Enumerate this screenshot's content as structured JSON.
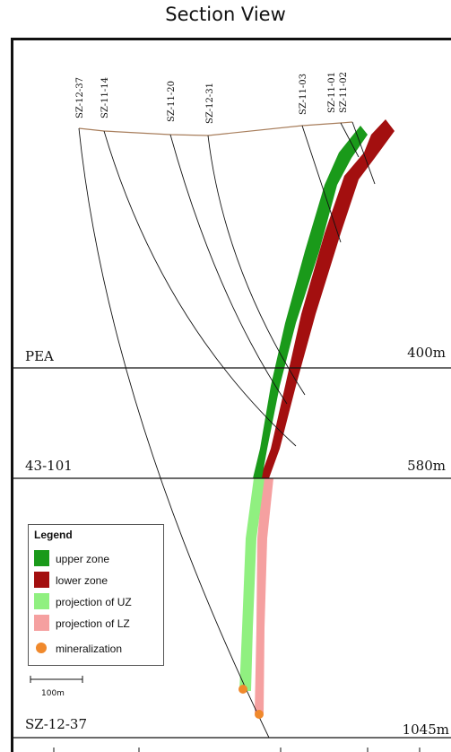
{
  "title": "Section View",
  "colors": {
    "upper_zone": "#1a9a1a",
    "lower_zone": "#a30f0f",
    "projection_uz": "#90f080",
    "projection_lz": "#f5a0a0",
    "mineralization": "#f0892c",
    "collar_line": "#a87e5c"
  },
  "levels": [
    {
      "left_label": "PEA",
      "right_label": "400m"
    },
    {
      "left_label": "43-101",
      "right_label": "580m"
    },
    {
      "left_label": "SZ-12-37",
      "right_label": "1045m"
    }
  ],
  "drill_holes": [
    "SZ-12-37",
    "SZ-11-14",
    "SZ-11-20",
    "SZ-12-31",
    "SZ-11-03",
    "SZ-11-01",
    "SZ-11-02"
  ],
  "legend": {
    "title": "Legend",
    "items": [
      {
        "label": "upper zone",
        "color": "#1a9a1a",
        "shape": "square"
      },
      {
        "label": "lower zone",
        "color": "#a30f0f",
        "shape": "square"
      },
      {
        "label": "projection of UZ",
        "color": "#90f080",
        "shape": "square"
      },
      {
        "label": "projection of LZ",
        "color": "#f5a0a0",
        "shape": "square"
      },
      {
        "label": "mineralization",
        "color": "#f0892c",
        "shape": "dot"
      }
    ]
  },
  "scale_bar": {
    "label": "100m"
  }
}
